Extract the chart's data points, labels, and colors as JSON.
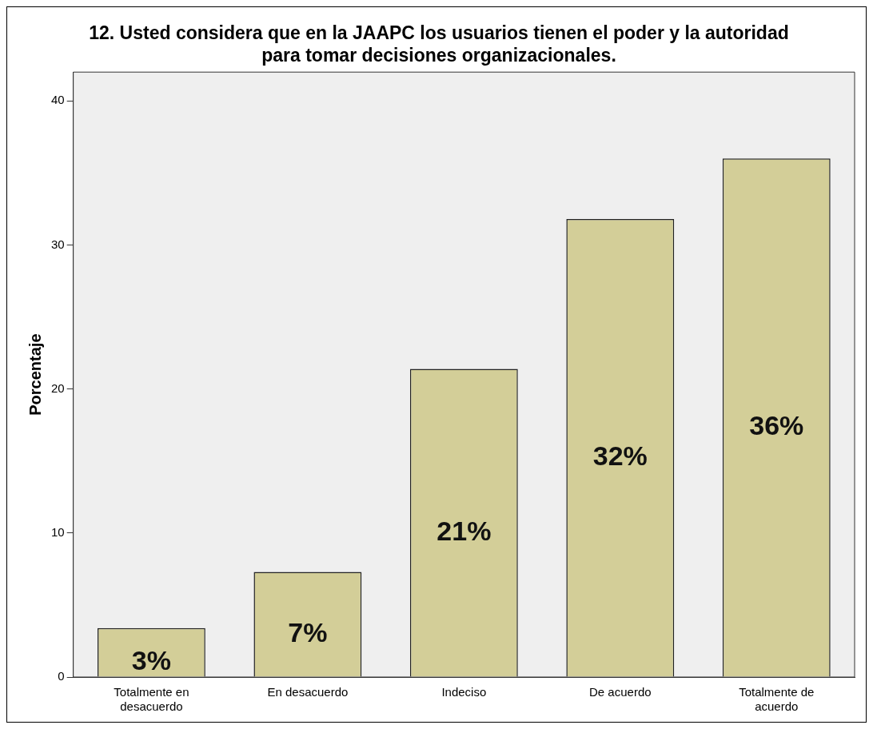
{
  "chart_data": {
    "type": "bar",
    "title": "12. Usted considera que en la JAAPC los usuarios tienen el poder y la autoridad para tomar decisiones organizacionales.",
    "ylabel": "Porcentaje",
    "categories": [
      "Totalmente en desacuerdo",
      "En desacuerdo",
      "Indeciso",
      "De acuerdo",
      "Totalmente de acuerdo"
    ],
    "values": [
      3.4,
      7.3,
      21.4,
      31.8,
      36.0
    ],
    "value_labels": [
      "3%",
      "7%",
      "21%",
      "32%",
      "36%"
    ],
    "color": "#d3ce98",
    "ylim": [
      0,
      42
    ],
    "yticks": [
      0,
      10,
      20,
      30,
      40
    ],
    "grid": false,
    "legend": false
  }
}
